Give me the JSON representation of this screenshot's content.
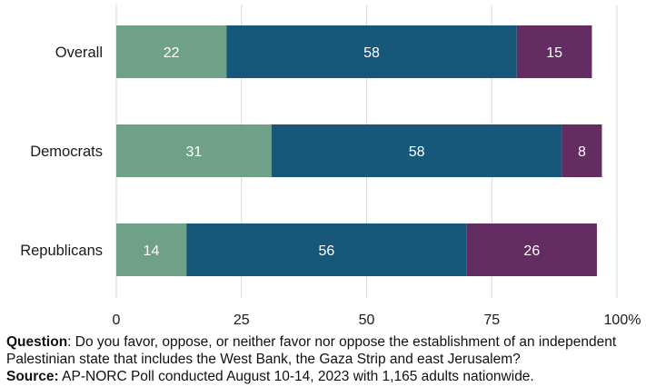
{
  "chart_data": {
    "type": "bar",
    "orientation": "horizontal",
    "stacked": true,
    "categories": [
      "Overall",
      "Democrats",
      "Republicans"
    ],
    "series": [
      {
        "values": [
          22,
          31,
          14
        ],
        "color": "#6fa088"
      },
      {
        "values": [
          58,
          58,
          56
        ],
        "color": "#17587a"
      },
      {
        "values": [
          15,
          8,
          26
        ],
        "color": "#642d62"
      }
    ],
    "xlim": [
      0,
      100
    ],
    "xticks": [
      "0",
      "25",
      "50",
      "75",
      "100%"
    ],
    "grid": "vertical",
    "data_labels": true
  },
  "notes": {
    "question_label": "Question",
    "question_text": ": Do you favor, oppose, or neither favor nor oppose the establishment of an independent Palestinian state that includes the West Bank, the Gaza Strip  and east Jerusalem?",
    "source_label": "Source:",
    "source_text": " AP-NORC Poll conducted August 10-14, 2023 with 1,165 adults nationwide."
  }
}
